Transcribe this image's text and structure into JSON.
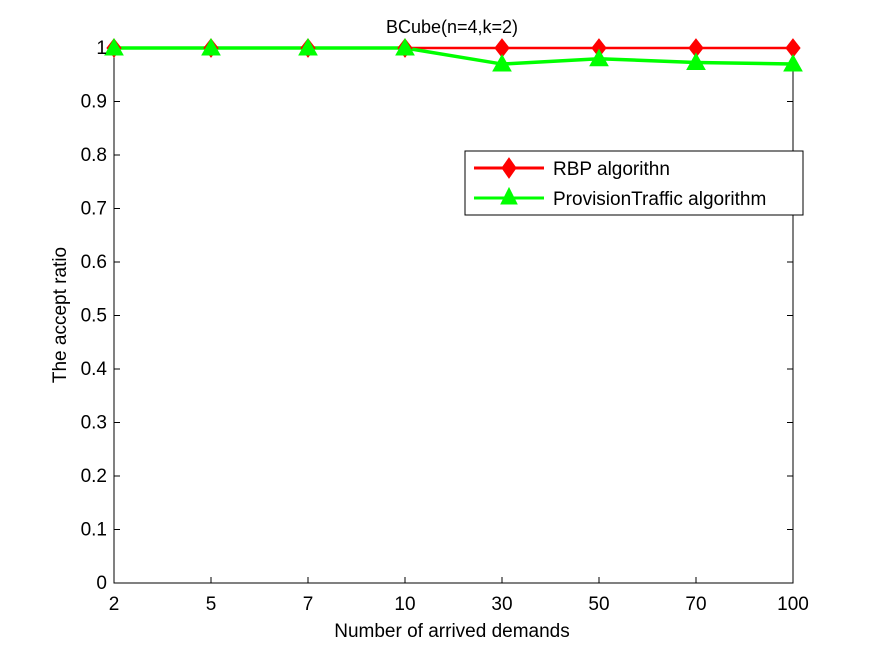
{
  "chart_data": {
    "type": "line",
    "title": "BCube(n=4,k=2)",
    "xlabel": "Number of arrived demands",
    "ylabel": "The accept ratio",
    "categories": [
      "2",
      "5",
      "7",
      "10",
      "30",
      "50",
      "70",
      "100"
    ],
    "ylim": [
      0,
      1
    ],
    "yticks": [
      "0",
      "0.1",
      "0.2",
      "0.3",
      "0.4",
      "0.5",
      "0.6",
      "0.7",
      "0.8",
      "0.9",
      "1"
    ],
    "grid": false,
    "legend_position": "upper-right",
    "series": [
      {
        "name": "RBP algorithn",
        "color": "#ff0000",
        "marker": "diamond",
        "values": [
          1,
          1,
          1,
          1,
          1,
          1,
          1,
          1
        ]
      },
      {
        "name": "ProvisionTraffic algorithm",
        "color": "#00ff00",
        "marker": "triangle",
        "values": [
          1,
          1,
          1,
          1,
          0.97,
          0.98,
          0.973,
          0.97
        ]
      }
    ]
  }
}
